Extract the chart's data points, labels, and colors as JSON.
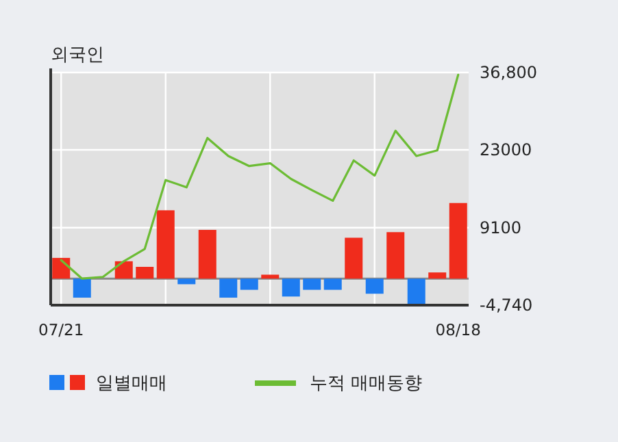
{
  "chart_data": {
    "type": "bar",
    "title": "외국인",
    "categories": [
      "07/21",
      null,
      null,
      null,
      null,
      null,
      null,
      null,
      null,
      null,
      null,
      null,
      null,
      null,
      null,
      null,
      null,
      null,
      null,
      "08/18"
    ],
    "series": [
      {
        "name": "일별매매",
        "colors": [
          "#f02c1c",
          "#1e7cf0",
          "#f02c1c",
          "#f02c1c",
          "#f02c1c",
          "#f02c1c",
          "#1e7cf0",
          "#f02c1c",
          "#1e7cf0",
          "#1e7cf0",
          "#f02c1c",
          "#1e7cf0",
          "#1e7cf0",
          "#1e7cf0",
          "#f02c1c",
          "#1e7cf0",
          "#f02c1c",
          "#1e7cf0",
          "#f02c1c",
          "#f02c1c"
        ],
        "values": [
          3700,
          -3400,
          0,
          3100,
          2100,
          12200,
          -1000,
          8700,
          -3400,
          -2000,
          700,
          -3200,
          -2000,
          -2000,
          7300,
          -2700,
          8300,
          -4600,
          1100,
          13500
        ]
      },
      {
        "name": "누적 매매동향",
        "type": "line",
        "color": "#6cbc34",
        "values": [
          3300,
          0,
          300,
          3100,
          5300,
          17600,
          16300,
          25100,
          21900,
          20100,
          20600,
          17800,
          15800,
          13900,
          21100,
          18400,
          26400,
          21900,
          22900,
          36400
        ]
      }
    ],
    "ylim": [
      -4740,
      36800
    ],
    "yticks": [
      {
        "value": 36800,
        "label": "36,800"
      },
      23000,
      9100,
      {
        "value": -4740,
        "label": "-4,740"
      }
    ],
    "grid": true,
    "legend": "bottom"
  }
}
